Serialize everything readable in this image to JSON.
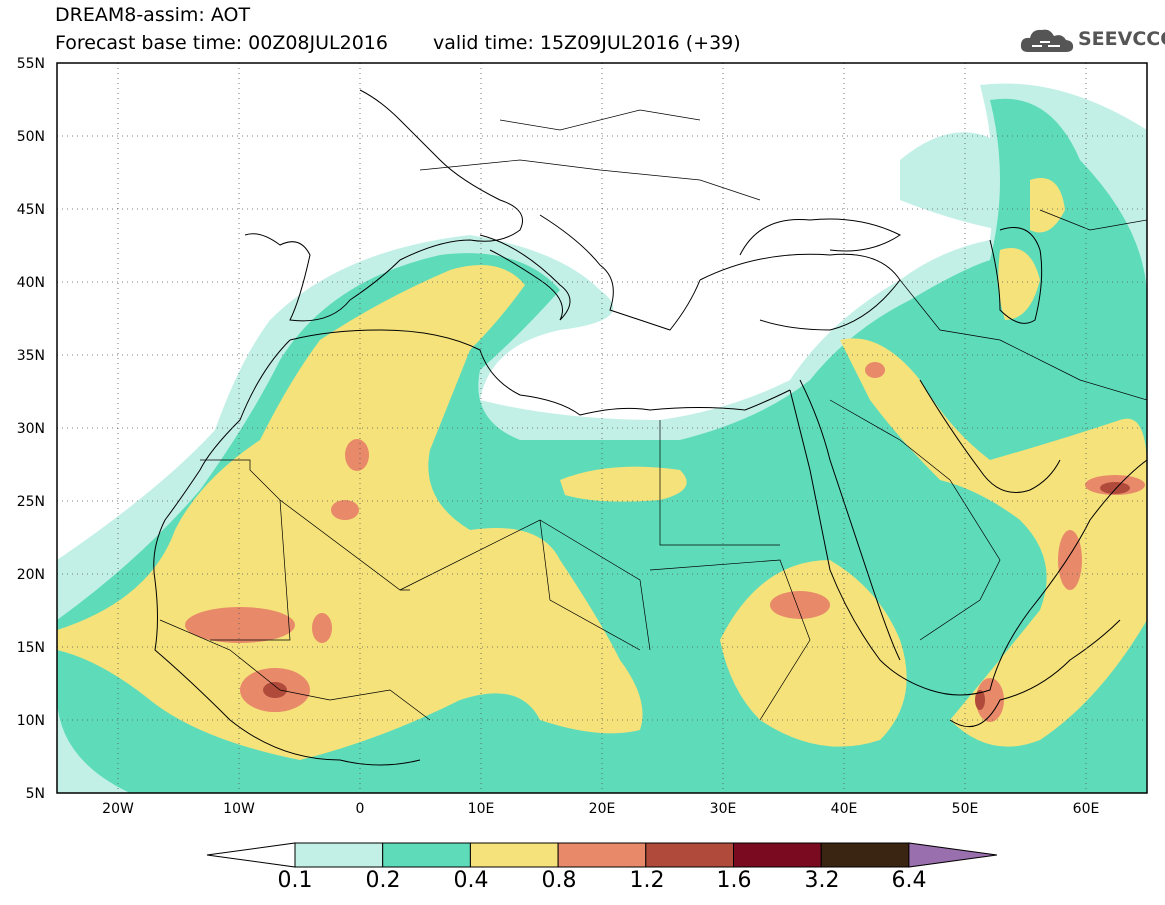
{
  "header": {
    "line1": "DREAM8-assim: AOT",
    "line2_base": "Forecast base time: 00Z08JUL2016",
    "line2_valid": "valid time: 15Z09JUL2016 (+39)"
  },
  "logo": {
    "text": "SEEVCCC",
    "icon": "cloud-icon"
  },
  "map": {
    "projection": "lat-lon",
    "lon_range": [
      -25,
      65
    ],
    "lat_range": [
      5,
      55
    ],
    "lat_ticks": [
      "5N",
      "10N",
      "15N",
      "20N",
      "25N",
      "30N",
      "35N",
      "40N",
      "45N",
      "50N",
      "55N"
    ],
    "lon_ticks": [
      "20W",
      "10W",
      "0",
      "10E",
      "20E",
      "30E",
      "40E",
      "50E",
      "60E"
    ],
    "gridlines": "dotted"
  },
  "colorbar": {
    "labels": [
      "0.1",
      "0.2",
      "0.4",
      "0.8",
      "1.2",
      "1.6",
      "3.2",
      "6.4"
    ],
    "colors": [
      "#ffffff",
      "#c2f0e6",
      "#5edcba",
      "#f5e27a",
      "#e8896a",
      "#b04a3a",
      "#7a0a1f",
      "#3a2412",
      "#9a6fae"
    ]
  }
}
